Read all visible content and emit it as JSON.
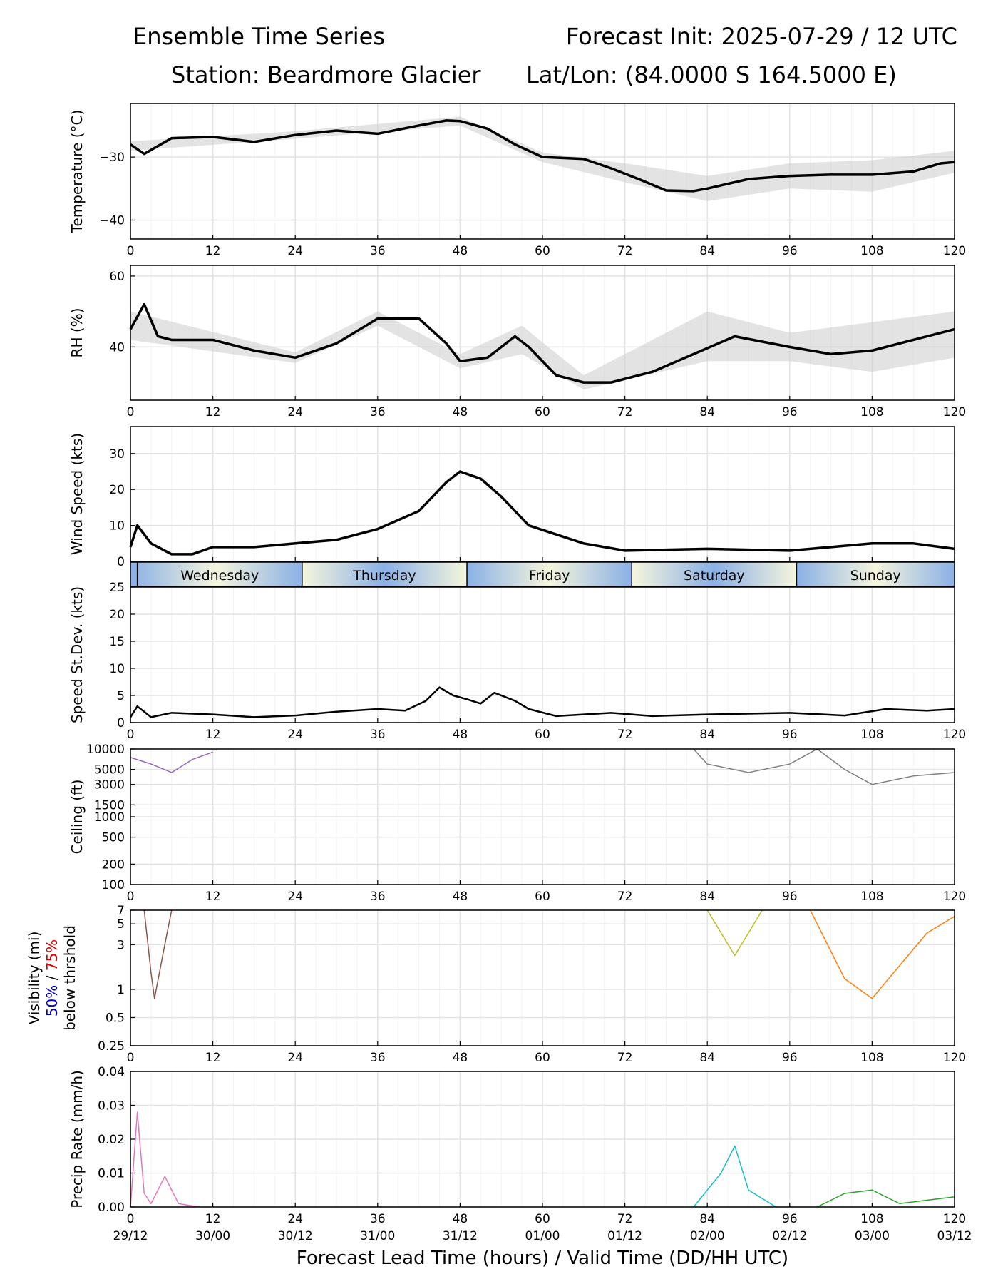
{
  "header": {
    "title": "Ensemble Time Series",
    "init": "Forecast Init: 2025-07-29 / 12 UTC",
    "station": "Station: Beardmore Glacier",
    "latlon": "Lat/Lon: (84.0000 S 164.5000 E)"
  },
  "chart_data": [
    {
      "type": "line",
      "ylabel": "Temperature (°C)",
      "ylim": [
        -43,
        -21.5
      ],
      "yticks": [
        -40,
        -30
      ],
      "ytick_labels": [
        "−40",
        "−30"
      ],
      "series": [
        {
          "values": [
            [
              0,
              -28
            ],
            [
              2,
              -29.5
            ],
            [
              6,
              -27
            ],
            [
              12,
              -26.8
            ],
            [
              18,
              -27.6
            ],
            [
              24,
              -26.5
            ],
            [
              30,
              -25.8
            ],
            [
              36,
              -26.3
            ],
            [
              42,
              -25
            ],
            [
              46,
              -24.2
            ],
            [
              48,
              -24.3
            ],
            [
              52,
              -25.5
            ],
            [
              56,
              -28
            ],
            [
              60,
              -30
            ],
            [
              66,
              -30.3
            ],
            [
              70,
              -31.8
            ],
            [
              74,
              -33.5
            ],
            [
              78,
              -35.3
            ],
            [
              82,
              -35.4
            ],
            [
              84,
              -35
            ],
            [
              90,
              -33.5
            ],
            [
              96,
              -33
            ],
            [
              102,
              -32.8
            ],
            [
              108,
              -32.8
            ],
            [
              114,
              -32.3
            ],
            [
              118,
              -31
            ],
            [
              120,
              -30.8
            ]
          ]
        }
      ],
      "spread": {
        "upper": [
          [
            0,
            -27.5
          ],
          [
            24,
            -25.9
          ],
          [
            48,
            -23.6
          ],
          [
            60,
            -29.3
          ],
          [
            72,
            -31
          ],
          [
            84,
            -33
          ],
          [
            96,
            -31
          ],
          [
            108,
            -30.5
          ],
          [
            120,
            -29
          ]
        ],
        "lower": [
          [
            0,
            -29
          ],
          [
            24,
            -27.1
          ],
          [
            48,
            -25
          ],
          [
            60,
            -30.8
          ],
          [
            72,
            -34
          ],
          [
            84,
            -37
          ],
          [
            96,
            -35
          ],
          [
            108,
            -35.5
          ],
          [
            120,
            -32.5
          ]
        ]
      }
    },
    {
      "type": "line",
      "ylabel": "RH (%)",
      "ylim": [
        25,
        63
      ],
      "yticks": [
        40,
        60
      ],
      "ytick_labels": [
        "40",
        "60"
      ],
      "series": [
        {
          "values": [
            [
              0,
              45
            ],
            [
              2,
              52
            ],
            [
              4,
              43
            ],
            [
              6,
              42
            ],
            [
              12,
              42
            ],
            [
              18,
              39
            ],
            [
              24,
              37
            ],
            [
              30,
              41
            ],
            [
              36,
              48
            ],
            [
              42,
              48
            ],
            [
              46,
              41
            ],
            [
              48,
              36
            ],
            [
              52,
              37
            ],
            [
              56,
              43
            ],
            [
              58,
              40
            ],
            [
              62,
              32
            ],
            [
              66,
              30
            ],
            [
              70,
              30
            ],
            [
              76,
              33
            ],
            [
              82,
              38
            ],
            [
              88,
              43
            ],
            [
              96,
              40
            ],
            [
              102,
              38
            ],
            [
              108,
              39
            ],
            [
              114,
              42
            ],
            [
              120,
              45
            ]
          ]
        }
      ],
      "spread": {
        "upper": [
          [
            0,
            50
          ],
          [
            24,
            38.5
          ],
          [
            36,
            50
          ],
          [
            48,
            38
          ],
          [
            57,
            46
          ],
          [
            66,
            32
          ],
          [
            84,
            50
          ],
          [
            96,
            44
          ],
          [
            108,
            47
          ],
          [
            120,
            50
          ]
        ],
        "lower": [
          [
            0,
            42
          ],
          [
            24,
            35.5
          ],
          [
            36,
            46
          ],
          [
            48,
            34
          ],
          [
            57,
            38
          ],
          [
            66,
            28
          ],
          [
            84,
            36
          ],
          [
            96,
            36
          ],
          [
            108,
            33
          ],
          [
            120,
            37
          ]
        ]
      }
    },
    {
      "type": "line",
      "ylabel": "Wind Speed (kts)",
      "ylim": [
        0,
        37.5
      ],
      "yticks": [
        0,
        10,
        20,
        30
      ],
      "ytick_labels": [
        "0",
        "10",
        "20",
        "30"
      ],
      "series": [
        {
          "values": [
            [
              0,
              4
            ],
            [
              1,
              10
            ],
            [
              3,
              5
            ],
            [
              6,
              2
            ],
            [
              9,
              2
            ],
            [
              12,
              4
            ],
            [
              18,
              4
            ],
            [
              24,
              5
            ],
            [
              30,
              6
            ],
            [
              36,
              9
            ],
            [
              42,
              14
            ],
            [
              46,
              22
            ],
            [
              48,
              25
            ],
            [
              51,
              23
            ],
            [
              54,
              18
            ],
            [
              58,
              10
            ],
            [
              66,
              5
            ],
            [
              72,
              3
            ],
            [
              84,
              3.5
            ],
            [
              96,
              3
            ],
            [
              102,
              4
            ],
            [
              108,
              5
            ],
            [
              114,
              5
            ],
            [
              120,
              3.5
            ]
          ]
        }
      ]
    },
    {
      "type": "line",
      "ylabel": "Speed St.Dev. (kts)",
      "ylim": [
        0,
        25
      ],
      "yticks": [
        0,
        5,
        10,
        15,
        20,
        25
      ],
      "ytick_labels": [
        "0",
        "5",
        "10",
        "15",
        "20",
        "25"
      ],
      "series": [
        {
          "values": [
            [
              0,
              1
            ],
            [
              1,
              3
            ],
            [
              3,
              1
            ],
            [
              6,
              1.8
            ],
            [
              12,
              1.5
            ],
            [
              18,
              1
            ],
            [
              24,
              1.3
            ],
            [
              30,
              2
            ],
            [
              36,
              2.5
            ],
            [
              40,
              2.2
            ],
            [
              43,
              4
            ],
            [
              45,
              6.5
            ],
            [
              47,
              5
            ],
            [
              49,
              4.3
            ],
            [
              51,
              3.5
            ],
            [
              53,
              5.5
            ],
            [
              56,
              4
            ],
            [
              58,
              2.5
            ],
            [
              62,
              1.2
            ],
            [
              70,
              1.8
            ],
            [
              76,
              1.2
            ],
            [
              84,
              1.5
            ],
            [
              96,
              1.8
            ],
            [
              104,
              1.3
            ],
            [
              110,
              2.5
            ],
            [
              116,
              2.2
            ],
            [
              120,
              2.5
            ]
          ]
        }
      ]
    },
    {
      "type": "line",
      "ylabel": "Ceiling (ft)",
      "yscale": "log",
      "ylim": [
        100,
        10000
      ],
      "yticks": [
        100,
        200,
        500,
        1000,
        1500,
        3000,
        5000,
        10000
      ],
      "ytick_labels": [
        "100",
        "200",
        "500",
        "1000",
        "1500",
        "3000",
        "5000",
        "10000"
      ],
      "series": [
        {
          "values": [
            [
              0,
              7500
            ],
            [
              3,
              6000
            ],
            [
              6,
              4500
            ],
            [
              9,
              7000
            ],
            [
              12,
              9000
            ]
          ]
        },
        {
          "values": [
            [
              82,
              10000
            ],
            [
              84,
              6000
            ],
            [
              90,
              4500
            ],
            [
              96,
              6000
            ],
            [
              100,
              10000
            ],
            [
              104,
              5000
            ],
            [
              108,
              3000
            ],
            [
              114,
              4000
            ],
            [
              120,
              4500
            ]
          ]
        }
      ]
    },
    {
      "type": "line",
      "ylabel": "Visibility (mi)",
      "ylabel_50": "50%",
      "ylabel_sep": " / ",
      "ylabel_75": "75%",
      "ylabel_below": "below thrshold",
      "yscale": "log",
      "ylim": [
        0.25,
        7
      ],
      "yticks": [
        0.25,
        0.5,
        1,
        3,
        5,
        7
      ],
      "ytick_labels": [
        "0.25",
        "0.5",
        "1",
        "3",
        "5",
        "7"
      ],
      "series": [
        {
          "values": [
            [
              2,
              7
            ],
            [
              3,
              1.5
            ],
            [
              3.5,
              0.8
            ],
            [
              5,
              3
            ],
            [
              6,
              7
            ]
          ]
        },
        {
          "values": [
            [
              84,
              7
            ],
            [
              88,
              2.3
            ],
            [
              92,
              7
            ]
          ]
        },
        {
          "values": [
            [
              99,
              7
            ],
            [
              104,
              1.3
            ],
            [
              108,
              0.8
            ],
            [
              110,
              1.2
            ],
            [
              116,
              4
            ],
            [
              120,
              6
            ]
          ]
        }
      ]
    },
    {
      "type": "line",
      "ylabel": "Precip Rate (mm/h)",
      "ylim": [
        0,
        0.04
      ],
      "yticks": [
        0,
        0.01,
        0.02,
        0.03,
        0.04
      ],
      "ytick_labels": [
        "0.00",
        "0.01",
        "0.02",
        "0.03",
        "0.04"
      ],
      "series": [
        {
          "values": [
            [
              0,
              0
            ],
            [
              1,
              0.028
            ],
            [
              2,
              0.004
            ],
            [
              3,
              0.001
            ],
            [
              5,
              0.009
            ],
            [
              7,
              0.001
            ],
            [
              10,
              0
            ]
          ]
        },
        {
          "values": [
            [
              82,
              0
            ],
            [
              86,
              0.01
            ],
            [
              88,
              0.018
            ],
            [
              90,
              0.005
            ],
            [
              94,
              0
            ]
          ]
        },
        {
          "values": [
            [
              100,
              0
            ],
            [
              104,
              0.004
            ],
            [
              108,
              0.005
            ],
            [
              112,
              0.001
            ],
            [
              120,
              0.003
            ]
          ]
        }
      ]
    }
  ],
  "xaxis": {
    "xlim": [
      0,
      120
    ],
    "ticks": [
      0,
      12,
      24,
      36,
      48,
      60,
      72,
      84,
      96,
      108,
      120
    ],
    "valid_labels": [
      "29/12",
      "30/00",
      "30/12",
      "31/00",
      "31/12",
      "01/00",
      "01/12",
      "02/00",
      "02/12",
      "03/00",
      "03/12"
    ],
    "xlabel": "Forecast Lead Time (hours) / Valid Time (DD/HH UTC)"
  },
  "days": {
    "labels": [
      "Wednesday",
      "Thursday",
      "Friday",
      "Saturday",
      "Sunday"
    ],
    "boundaries": [
      1,
      25,
      49,
      73,
      97
    ]
  },
  "colors": {
    "mean": "#000000",
    "spread": "#cccccc",
    "grid": "#e3e3e3",
    "visibility_50": "#0000cc",
    "visibility_75": "#dd0000",
    "day_blue": "#8ab0e6",
    "day_cream": "#f5f5dc",
    "members": [
      "#1f77b4",
      "#ff7f0e",
      "#2ca02c",
      "#d62728",
      "#9467bd",
      "#8c564b",
      "#e377c2",
      "#7f7f7f",
      "#bcbd22",
      "#17becf"
    ]
  }
}
